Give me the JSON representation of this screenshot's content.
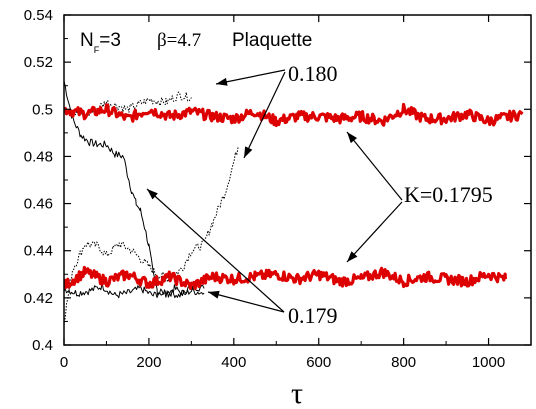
{
  "chart_data": {
    "type": "line",
    "title_parts": {
      "nf_main": "N",
      "nf_sub": "F",
      "nf_rest": "=3",
      "beta": "β=4.7",
      "observable": "Plaquette"
    },
    "xlabel": "τ",
    "ylabel": "",
    "xlim": [
      0,
      1100
    ],
    "ylim": [
      0.4,
      0.54
    ],
    "xticks": [
      0,
      200,
      400,
      600,
      800,
      1000
    ],
    "yticks": [
      0.4,
      0.42,
      0.44,
      0.46,
      0.48,
      0.5,
      0.52,
      0.54
    ],
    "xtick_labels": [
      "0",
      "200",
      "400",
      "600",
      "800",
      "1000"
    ],
    "ytick_labels": [
      "0.4",
      "0.42",
      "0.44",
      "0.46",
      "0.48",
      "0.5",
      "0.52",
      "0.54"
    ],
    "grid": false,
    "annotations": {
      "k_0180": "0.180",
      "k_0179": "0.179",
      "k_01795": "K=0.1795"
    },
    "series": [
      {
        "kappa": "0.1795",
        "branch": "upper",
        "color": "#dd0000",
        "style": "thick",
        "x": [
          0,
          50,
          100,
          150,
          200,
          250,
          300,
          350,
          400,
          450,
          500,
          550,
          600,
          650,
          700,
          750,
          800,
          850,
          900,
          950,
          1000,
          1050,
          1080
        ],
        "y": [
          0.5,
          0.498,
          0.5,
          0.496,
          0.5,
          0.497,
          0.499,
          0.497,
          0.496,
          0.499,
          0.495,
          0.497,
          0.497,
          0.496,
          0.497,
          0.495,
          0.5,
          0.496,
          0.496,
          0.498,
          0.495,
          0.497,
          0.498
        ]
      },
      {
        "kappa": "0.1795",
        "branch": "lower",
        "color": "#dd0000",
        "style": "thick",
        "x": [
          0,
          50,
          100,
          150,
          200,
          250,
          300,
          350,
          400,
          450,
          500,
          550,
          600,
          650,
          700,
          750,
          800,
          850,
          900,
          950,
          1000,
          1040
        ],
        "y": [
          0.425,
          0.431,
          0.427,
          0.43,
          0.426,
          0.429,
          0.425,
          0.429,
          0.428,
          0.429,
          0.43,
          0.428,
          0.43,
          0.427,
          0.428,
          0.431,
          0.427,
          0.429,
          0.428,
          0.427,
          0.43,
          0.428
        ]
      },
      {
        "kappa": "0.180",
        "branch": "from-below",
        "color": "#000000",
        "style": "dotted",
        "x": [
          0,
          20,
          50,
          80,
          100,
          130,
          160,
          190,
          220,
          250,
          280,
          300,
          330,
          350,
          380,
          410
        ],
        "y": [
          0.41,
          0.432,
          0.443,
          0.442,
          0.438,
          0.443,
          0.44,
          0.435,
          0.43,
          0.428,
          0.433,
          0.44,
          0.443,
          0.452,
          0.465,
          0.484
        ]
      },
      {
        "kappa": "0.180",
        "branch": "from-above",
        "color": "#000000",
        "style": "dotted",
        "x": [
          0,
          50,
          100,
          150,
          200,
          240,
          270,
          300
        ],
        "y": [
          0.5,
          0.497,
          0.503,
          0.5,
          0.504,
          0.503,
          0.506,
          0.505
        ]
      },
      {
        "kappa": "0.179",
        "branch": "from-above",
        "color": "#000000",
        "style": "solid-thin",
        "x": [
          0,
          20,
          40,
          60,
          80,
          100,
          120,
          140,
          150,
          160,
          170,
          180,
          190,
          200,
          210,
          220,
          240,
          260,
          280,
          300,
          330
        ],
        "y": [
          0.512,
          0.496,
          0.489,
          0.486,
          0.485,
          0.485,
          0.481,
          0.48,
          0.472,
          0.465,
          0.46,
          0.457,
          0.45,
          0.442,
          0.43,
          0.423,
          0.421,
          0.424,
          0.422,
          0.425,
          0.424
        ]
      },
      {
        "kappa": "0.179",
        "branch": "from-below",
        "color": "#000000",
        "style": "solid-thin",
        "x": [
          0,
          30,
          60,
          90,
          120,
          150,
          180,
          210,
          240,
          270,
          300,
          330
        ],
        "y": [
          0.424,
          0.422,
          0.423,
          0.425,
          0.421,
          0.422,
          0.424,
          0.421,
          0.423,
          0.421,
          0.423,
          0.422
        ]
      }
    ]
  }
}
